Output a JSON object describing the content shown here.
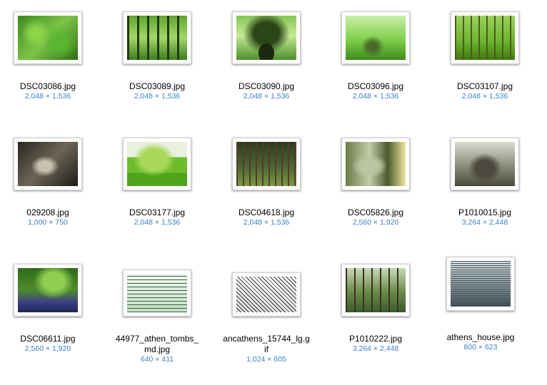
{
  "items": [
    {
      "name": "DSC03086.jpg",
      "dims": "2,048 × 1,536",
      "texture": "forest1"
    },
    {
      "name": "DSC03089.jpg",
      "dims": "2,048 × 1,536",
      "texture": "forest2"
    },
    {
      "name": "DSC03090.jpg",
      "dims": "2,048 × 1,536",
      "texture": "forest3"
    },
    {
      "name": "DSC03096.jpg",
      "dims": "2,048 × 1,536",
      "texture": "forest4"
    },
    {
      "name": "DSC03107.jpg",
      "dims": "2,048 × 1,536",
      "texture": "forest5"
    },
    {
      "name": "029208.jpg",
      "dims": "1,000 × 750",
      "texture": "dark1"
    },
    {
      "name": "DSC03177.jpg",
      "dims": "2,048 × 1,536",
      "texture": "willow"
    },
    {
      "name": "DSC04618.jpg",
      "dims": "2,048 × 1,536",
      "texture": "pine"
    },
    {
      "name": "DSC05826.jpg",
      "dims": "2,560 × 1,920",
      "texture": "trunk1"
    },
    {
      "name": "P1010015.jpg",
      "dims": "3,264 × 2,448",
      "texture": "trunk2"
    },
    {
      "name": "DSC06611.jpg",
      "dims": "2,560 × 1,920",
      "texture": "bluebell"
    },
    {
      "name": "44977_athen_tombs_\nmd.jpg",
      "dims": "640 × 411",
      "texture": "sketch1"
    },
    {
      "name": "ancathens_15744_lg.g\nif",
      "dims": "1,024 × 605",
      "texture": "sketch2"
    },
    {
      "name": "P1010222.jpg",
      "dims": "3,264 × 2,448",
      "texture": "forest6"
    },
    {
      "name": "athens_house.jpg",
      "dims": "800 × 623",
      "texture": "engrave"
    }
  ]
}
